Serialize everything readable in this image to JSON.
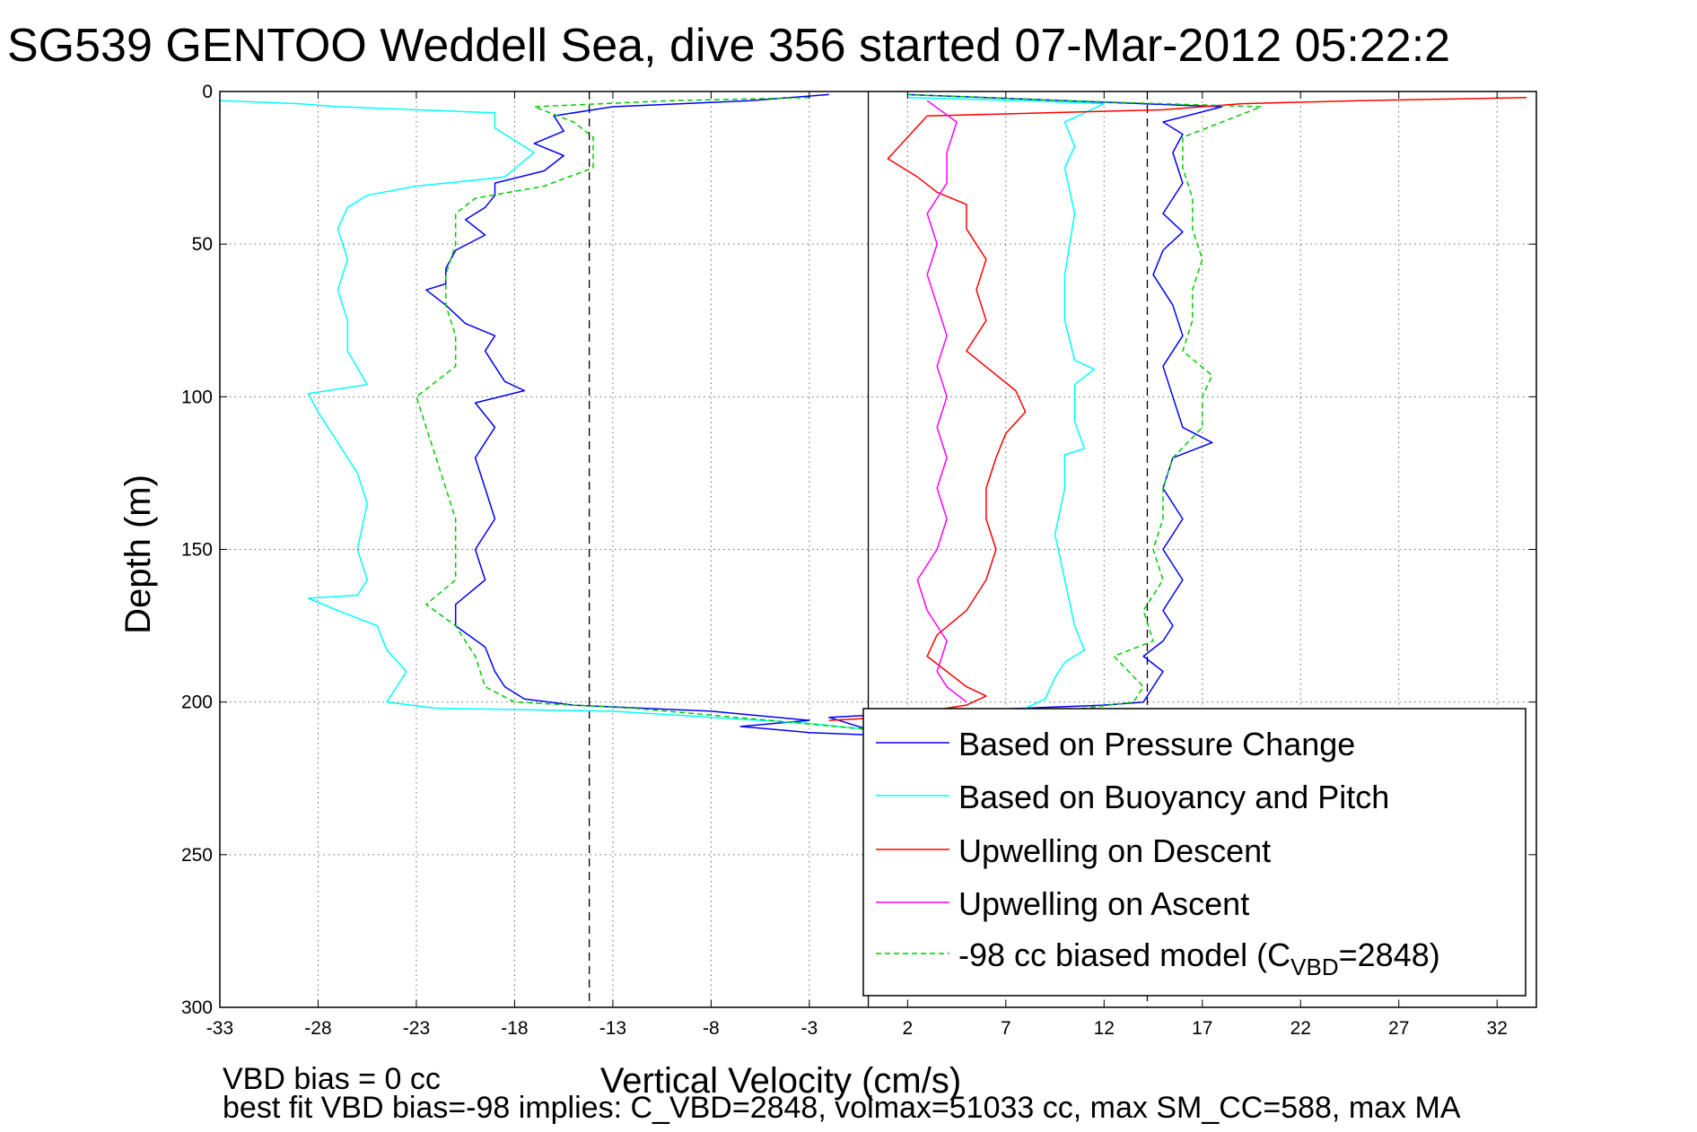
{
  "chart_data": {
    "type": "line",
    "title": "SG539 GENTOO Weddell Sea, dive 356 started 07-Mar-2012 05:22:2",
    "xlabel": "Vertical Velocity (cm/s)",
    "ylabel": "Depth (m)",
    "xlim": [
      -33,
      34
    ],
    "ylim": [
      300,
      0
    ],
    "y_reversed": true,
    "xticks": [
      -33,
      -28,
      -23,
      -18,
      -13,
      -8,
      -3,
      2,
      7,
      12,
      17,
      22,
      27,
      32
    ],
    "yticks": [
      0,
      50,
      100,
      150,
      200,
      250,
      300
    ],
    "grid": true,
    "legend_position": "bottom-right",
    "reference_lines": [
      {
        "x": 0,
        "style": "solid",
        "color": "#000000"
      },
      {
        "x": -14.2,
        "style": "dashed",
        "color": "#000000"
      },
      {
        "x": 14.2,
        "style": "dashed",
        "color": "#000000"
      }
    ],
    "series": [
      {
        "name": "Based on Pressure Change",
        "color": "#0000ff",
        "style": "solid",
        "points": [
          [
            -2,
            1
          ],
          [
            -6,
            3
          ],
          [
            -13,
            5
          ],
          [
            -16,
            8
          ],
          [
            -15.5,
            13
          ],
          [
            -17,
            17
          ],
          [
            -15.5,
            21
          ],
          [
            -16.5,
            26
          ],
          [
            -19,
            30
          ],
          [
            -19,
            34
          ],
          [
            -19.5,
            38
          ],
          [
            -20.5,
            42
          ],
          [
            -19.5,
            47
          ],
          [
            -21,
            52
          ],
          [
            -21.5,
            58
          ],
          [
            -21.5,
            63
          ],
          [
            -22.5,
            65
          ],
          [
            -21.5,
            70
          ],
          [
            -20.5,
            76
          ],
          [
            -19,
            80
          ],
          [
            -19.5,
            85
          ],
          [
            -19,
            90
          ],
          [
            -18.5,
            95
          ],
          [
            -17.5,
            98
          ],
          [
            -20,
            102
          ],
          [
            -19,
            110
          ],
          [
            -20,
            120
          ],
          [
            -19.5,
            130
          ],
          [
            -19,
            140
          ],
          [
            -20,
            150
          ],
          [
            -19.5,
            160
          ],
          [
            -21,
            168
          ],
          [
            -21,
            175
          ],
          [
            -19.5,
            182
          ],
          [
            -19,
            190
          ],
          [
            -18.5,
            195
          ],
          [
            -17.5,
            199
          ],
          [
            -15,
            201
          ],
          [
            -8,
            203
          ],
          [
            -3,
            206
          ],
          [
            -6.5,
            208
          ],
          [
            -3,
            210
          ],
          [
            1,
            211
          ],
          [
            -2,
            205
          ],
          [
            4,
            203
          ],
          [
            8,
            202
          ],
          [
            12,
            201
          ],
          [
            14,
            200
          ],
          [
            14.5,
            195
          ],
          [
            15,
            190
          ],
          [
            14,
            185
          ],
          [
            15,
            180
          ],
          [
            15.5,
            175
          ],
          [
            15,
            170
          ],
          [
            16,
            160
          ],
          [
            15,
            150
          ],
          [
            16,
            140
          ],
          [
            15,
            130
          ],
          [
            15.5,
            120
          ],
          [
            17.5,
            115
          ],
          [
            16,
            110
          ],
          [
            15.5,
            100
          ],
          [
            15,
            90
          ],
          [
            16,
            80
          ],
          [
            15.5,
            70
          ],
          [
            14.5,
            60
          ],
          [
            15,
            52
          ],
          [
            16,
            46
          ],
          [
            15,
            40
          ],
          [
            16,
            30
          ],
          [
            15.5,
            20
          ],
          [
            16,
            14
          ],
          [
            15,
            10
          ],
          [
            18,
            5
          ],
          [
            10,
            3
          ],
          [
            2,
            1
          ]
        ]
      },
      {
        "name": "Based on Buoyancy and Pitch",
        "color": "#00ffff",
        "style": "solid",
        "points": [
          [
            -33,
            3
          ],
          [
            -29,
            4
          ],
          [
            -27,
            5
          ],
          [
            -19,
            7
          ],
          [
            -19,
            12
          ],
          [
            -17,
            20
          ],
          [
            -18.5,
            28
          ],
          [
            -23,
            31
          ],
          [
            -25.5,
            34
          ],
          [
            -26.5,
            38
          ],
          [
            -27,
            45
          ],
          [
            -26.5,
            55
          ],
          [
            -27,
            65
          ],
          [
            -26.5,
            75
          ],
          [
            -26.5,
            85
          ],
          [
            -25.5,
            96
          ],
          [
            -28.5,
            99
          ],
          [
            -28,
            105
          ],
          [
            -27,
            115
          ],
          [
            -26,
            125
          ],
          [
            -25.5,
            135
          ],
          [
            -26,
            150
          ],
          [
            -25.5,
            160
          ],
          [
            -26,
            165
          ],
          [
            -28.5,
            166
          ],
          [
            -27,
            170
          ],
          [
            -25,
            175
          ],
          [
            -24.5,
            183
          ],
          [
            -23.5,
            190
          ],
          [
            -24,
            195
          ],
          [
            -24.5,
            200
          ],
          [
            -22,
            202
          ],
          [
            -13,
            203
          ],
          [
            -8,
            205
          ],
          [
            -3,
            207
          ],
          [
            0,
            209
          ],
          [
            2,
            210
          ],
          [
            5,
            207
          ],
          [
            7,
            204
          ],
          [
            8,
            202
          ],
          [
            9,
            199
          ],
          [
            9.5,
            192
          ],
          [
            10,
            187
          ],
          [
            11,
            183
          ],
          [
            10.5,
            175
          ],
          [
            10,
            160
          ],
          [
            9.5,
            145
          ],
          [
            10,
            130
          ],
          [
            10,
            119
          ],
          [
            11,
            117
          ],
          [
            10.5,
            108
          ],
          [
            10.5,
            96
          ],
          [
            11.5,
            91
          ],
          [
            10.5,
            88
          ],
          [
            10,
            75
          ],
          [
            10,
            60
          ],
          [
            10.5,
            40
          ],
          [
            10,
            25
          ],
          [
            10.5,
            18
          ],
          [
            10,
            10
          ],
          [
            11,
            7
          ],
          [
            12,
            4
          ],
          [
            8,
            3
          ],
          [
            2,
            2
          ]
        ]
      },
      {
        "name": "Upwelling on Descent",
        "color": "#ff0000",
        "style": "solid",
        "points": [
          [
            33.5,
            2
          ],
          [
            25,
            3
          ],
          [
            19,
            4
          ],
          [
            15,
            6
          ],
          [
            3,
            8
          ],
          [
            2,
            15
          ],
          [
            1,
            22
          ],
          [
            2.5,
            28
          ],
          [
            3.5,
            33
          ],
          [
            5,
            37
          ],
          [
            5,
            45
          ],
          [
            6,
            55
          ],
          [
            5.5,
            65
          ],
          [
            6,
            75
          ],
          [
            5,
            85
          ],
          [
            7.5,
            98
          ],
          [
            8,
            105
          ],
          [
            7,
            112
          ],
          [
            6.5,
            120
          ],
          [
            6,
            130
          ],
          [
            6,
            140
          ],
          [
            6.5,
            150
          ],
          [
            6,
            160
          ],
          [
            5,
            170
          ],
          [
            3.5,
            178
          ],
          [
            3,
            185
          ],
          [
            4,
            190
          ],
          [
            5,
            195
          ],
          [
            6,
            198
          ],
          [
            5,
            201
          ],
          [
            3,
            203
          ],
          [
            1,
            205
          ],
          [
            -2,
            206
          ]
        ]
      },
      {
        "name": "Upwelling on Ascent",
        "color": "#ff00ff",
        "style": "solid",
        "points": [
          [
            5,
            200
          ],
          [
            4,
            195
          ],
          [
            3.5,
            190
          ],
          [
            4,
            180
          ],
          [
            3,
            170
          ],
          [
            2.5,
            160
          ],
          [
            3.5,
            150
          ],
          [
            4,
            140
          ],
          [
            3.5,
            130
          ],
          [
            4,
            120
          ],
          [
            3.5,
            110
          ],
          [
            4,
            100
          ],
          [
            3.5,
            90
          ],
          [
            4,
            80
          ],
          [
            3.5,
            70
          ],
          [
            3,
            60
          ],
          [
            3.5,
            50
          ],
          [
            3,
            40
          ],
          [
            4,
            30
          ],
          [
            4,
            20
          ],
          [
            4.5,
            10
          ],
          [
            3,
            3
          ]
        ]
      },
      {
        "name": "-98 cc biased model (C_VBD=2848)",
        "color": "#00cc00",
        "style": "dashed",
        "points": [
          [
            -3,
            2
          ],
          [
            -10,
            3
          ],
          [
            -17,
            5
          ],
          [
            -15,
            10
          ],
          [
            -14,
            15
          ],
          [
            -14,
            25
          ],
          [
            -16.5,
            31
          ],
          [
            -20,
            35
          ],
          [
            -21,
            40
          ],
          [
            -21,
            50
          ],
          [
            -21.5,
            60
          ],
          [
            -21.5,
            70
          ],
          [
            -21,
            80
          ],
          [
            -21,
            90
          ],
          [
            -22,
            95
          ],
          [
            -23,
            100
          ],
          [
            -22.5,
            110
          ],
          [
            -22,
            120
          ],
          [
            -21.5,
            130
          ],
          [
            -21,
            140
          ],
          [
            -21,
            150
          ],
          [
            -21,
            160
          ],
          [
            -22.5,
            168
          ],
          [
            -21,
            175
          ],
          [
            -20,
            185
          ],
          [
            -19.5,
            195
          ],
          [
            -18,
            200
          ],
          [
            -12,
            202
          ],
          [
            -5,
            206
          ],
          [
            0,
            209
          ],
          [
            3,
            207
          ],
          [
            7,
            204
          ],
          [
            11,
            202
          ],
          [
            13.5,
            200
          ],
          [
            14,
            195
          ],
          [
            12.5,
            185
          ],
          [
            14.5,
            180
          ],
          [
            14,
            170
          ],
          [
            15,
            160
          ],
          [
            14.5,
            150
          ],
          [
            15,
            140
          ],
          [
            15,
            130
          ],
          [
            15.5,
            120
          ],
          [
            17,
            110
          ],
          [
            17,
            100
          ],
          [
            17.5,
            93
          ],
          [
            16,
            85
          ],
          [
            16.5,
            75
          ],
          [
            16.5,
            65
          ],
          [
            17,
            55
          ],
          [
            16.5,
            45
          ],
          [
            16.5,
            35
          ],
          [
            16,
            25
          ],
          [
            16,
            15
          ],
          [
            20,
            5
          ],
          [
            10,
            3
          ],
          [
            2,
            1
          ]
        ]
      }
    ],
    "legend_entries": [
      {
        "label": "Based on Pressure Change",
        "color": "#0000ff",
        "style": "solid"
      },
      {
        "label": "Based on Buoyancy and Pitch",
        "color": "#00ffff",
        "style": "solid"
      },
      {
        "label": "Upwelling on Descent",
        "color": "#ff0000",
        "style": "solid"
      },
      {
        "label": "Upwelling on Ascent",
        "color": "#ff00ff",
        "style": "solid"
      },
      {
        "label_main": "-98 cc biased model (C",
        "label_sub": "VBD",
        "label_end": "=2848)",
        "color": "#00cc00",
        "style": "dashed"
      }
    ]
  },
  "footer": {
    "line1": "VBD bias = 0 cc",
    "line2": "best fit VBD bias=-98 implies: C_VBD=2848, volmax=51033 cc, max SM_CC=588, max MA"
  }
}
